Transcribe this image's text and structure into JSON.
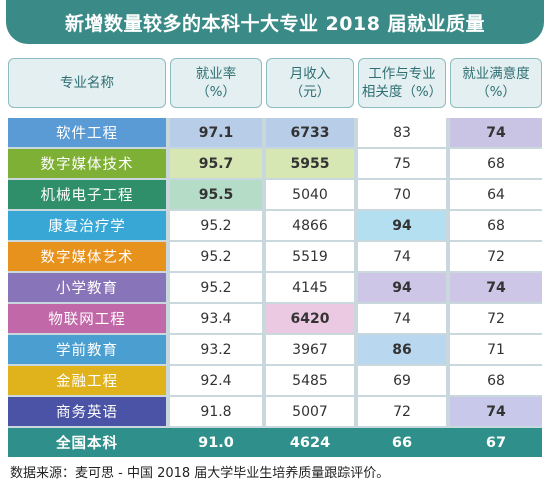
{
  "title": "新增数量较多的本科十大专业 2018 届就业质量",
  "headers": [
    "专业名称",
    "就业率\n（%）",
    "月收入\n（元）",
    "工作与专业\n相关度（%）",
    "就业满意度\n（%）"
  ],
  "chart_data": {
    "type": "table",
    "title": "新增数量较多的本科十大专业 2018 届就业质量",
    "columns": [
      "专业名称",
      "就业率（%）",
      "月收入（元）",
      "工作与专业相关度（%）",
      "就业满意度（%）"
    ],
    "rows": [
      {
        "name": "软件工程",
        "employment": "97.1",
        "income": "6733",
        "relevance": "83",
        "satisfaction": "74",
        "color": "#5b9bd5"
      },
      {
        "name": "数字媒体技术",
        "employment": "95.7",
        "income": "5955",
        "relevance": "75",
        "satisfaction": "68",
        "color": "#7fb036"
      },
      {
        "name": "机械电子工程",
        "employment": "95.5",
        "income": "5040",
        "relevance": "70",
        "satisfaction": "64",
        "color": "#2f8f6b"
      },
      {
        "name": "康复治疗学",
        "employment": "95.2",
        "income": "4866",
        "relevance": "94",
        "satisfaction": "68",
        "color": "#39a7d6"
      },
      {
        "name": "数字媒体艺术",
        "employment": "95.2",
        "income": "5519",
        "relevance": "74",
        "satisfaction": "72",
        "color": "#e8921e"
      },
      {
        "name": "小学教育",
        "employment": "95.2",
        "income": "4145",
        "relevance": "94",
        "satisfaction": "74",
        "color": "#8874b8"
      },
      {
        "name": "物联网工程",
        "employment": "93.4",
        "income": "6420",
        "relevance": "74",
        "satisfaction": "72",
        "color": "#c168a8"
      },
      {
        "name": "学前教育",
        "employment": "93.2",
        "income": "3967",
        "relevance": "86",
        "satisfaction": "71",
        "color": "#4b9fd0"
      },
      {
        "name": "金融工程",
        "employment": "92.4",
        "income": "5485",
        "relevance": "69",
        "satisfaction": "68",
        "color": "#e0b21c"
      },
      {
        "name": "商务英语",
        "employment": "91.8",
        "income": "5007",
        "relevance": "72",
        "satisfaction": "74",
        "color": "#4a53a5"
      }
    ],
    "total": {
      "name": "全国本科",
      "employment": "91.0",
      "income": "4624",
      "relevance": "66",
      "satisfaction": "67",
      "color": "#2f8f8a"
    },
    "highlights": [
      {
        "row": 0,
        "col": "employment",
        "color": "#b8cde8",
        "bold": true
      },
      {
        "row": 0,
        "col": "income",
        "color": "#b8cde8",
        "bold": true
      },
      {
        "row": 0,
        "col": "satisfaction",
        "color": "#c9c4e4",
        "bold": true
      },
      {
        "row": 1,
        "col": "employment",
        "color": "#d6e7b4",
        "bold": true
      },
      {
        "row": 1,
        "col": "income",
        "color": "#d6e7b4",
        "bold": true
      },
      {
        "row": 2,
        "col": "employment",
        "color": "#b5dcc7",
        "bold": true
      },
      {
        "row": 3,
        "col": "relevance",
        "color": "#b3dff1",
        "bold": true
      },
      {
        "row": 5,
        "col": "relevance",
        "color": "#cdc6e6",
        "bold": true
      },
      {
        "row": 5,
        "col": "satisfaction",
        "color": "#cdc6e6",
        "bold": true
      },
      {
        "row": 6,
        "col": "income",
        "color": "#ecc9e2",
        "bold": true
      },
      {
        "row": 7,
        "col": "relevance",
        "color": "#b9d7ee",
        "bold": true
      },
      {
        "row": 9,
        "col": "satisfaction",
        "color": "#c8c9ea",
        "bold": true
      }
    ]
  },
  "footnote": "数据来源：麦可思 - 中国 2018 届大学毕业生培养质量跟踪评价。"
}
